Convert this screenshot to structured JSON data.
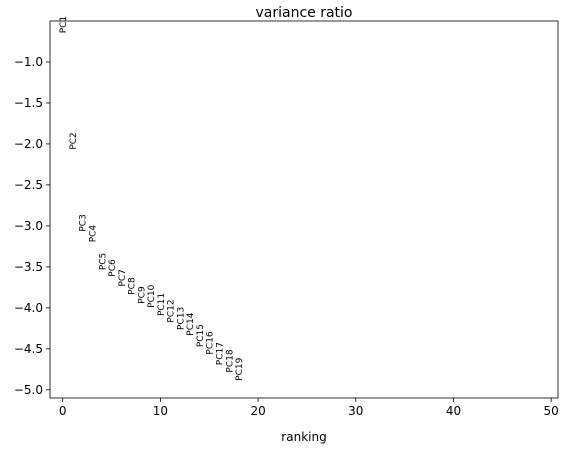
{
  "chart_data": {
    "type": "text_scatter",
    "title": "variance ratio",
    "xlabel": "ranking",
    "x": [
      0,
      1,
      2,
      3,
      4,
      5,
      6,
      7,
      8,
      9,
      10,
      11,
      12,
      13,
      14,
      15,
      16,
      17,
      18
    ],
    "values": [
      -0.65,
      -2.07,
      -3.07,
      -3.2,
      -3.54,
      -3.62,
      -3.74,
      -3.84,
      -3.95,
      -4.0,
      -4.1,
      -4.18,
      -4.27,
      -4.34,
      -4.48,
      -4.57,
      -4.7,
      -4.79,
      -4.89
    ],
    "point_labels": [
      "PC1",
      "PC2",
      "PC3",
      "PC4",
      "PC5",
      "PC6",
      "PC7",
      "PC8",
      "PC9",
      "PC10",
      "PC11",
      "PC12",
      "PC13",
      "PC14",
      "PC15",
      "PC16",
      "PC17",
      "PC18",
      "PC19"
    ],
    "xlim": [
      -1.3,
      50.7
    ],
    "xticks": [
      0,
      10,
      20,
      30,
      40,
      50
    ],
    "ylim": [
      -5.1,
      -0.5
    ],
    "yticks": [
      {
        "value": -1.0,
        "label": "−1.0"
      },
      {
        "value": -1.5,
        "label": "−1.5"
      },
      {
        "value": -2.0,
        "label": "−2.0"
      },
      {
        "value": -2.5,
        "label": "−2.5"
      },
      {
        "value": -3.0,
        "label": "−3.0"
      },
      {
        "value": -3.5,
        "label": "−3.5"
      },
      {
        "value": -4.0,
        "label": "−4.0"
      },
      {
        "value": -4.5,
        "label": "−4.5"
      },
      {
        "value": -5.0,
        "label": "−5.0"
      }
    ],
    "color": "#000000"
  }
}
